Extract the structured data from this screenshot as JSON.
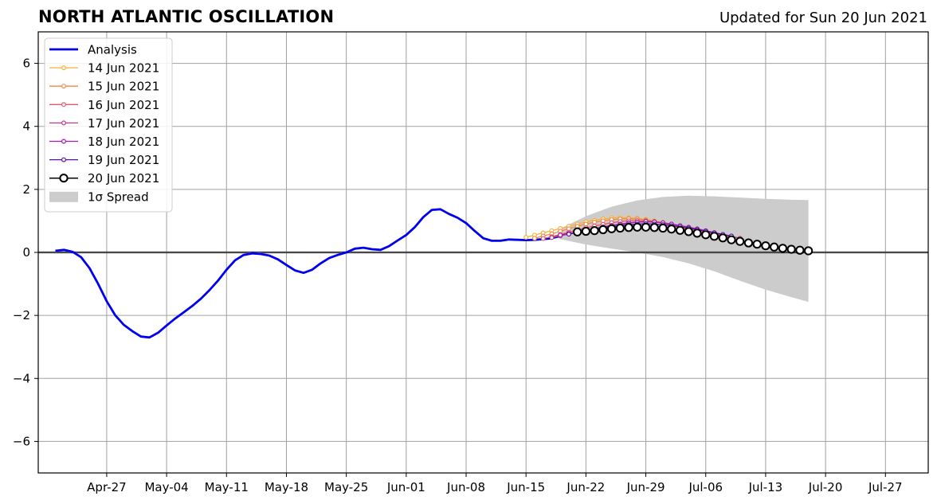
{
  "chart_data": {
    "type": "line",
    "title": "NORTH ATLANTIC OSCILLATION",
    "subtitle": "Updated for Sun 20 Jun 2021",
    "xlabel": "",
    "ylabel": "",
    "x_range": [
      "2021-04-19",
      "2021-08-01"
    ],
    "ylim": [
      -7,
      7
    ],
    "y_ticks": [
      -6,
      -4,
      -2,
      0,
      2,
      4,
      6
    ],
    "y_tick_labels": [
      "−6",
      "−4",
      "−2",
      "0",
      "2",
      "4",
      "6"
    ],
    "x_ticks": [
      "2021-04-27",
      "2021-05-04",
      "2021-05-11",
      "2021-05-18",
      "2021-05-25",
      "2021-06-01",
      "2021-06-08",
      "2021-06-15",
      "2021-06-22",
      "2021-06-29",
      "2021-07-06",
      "2021-07-13",
      "2021-07-20",
      "2021-07-27"
    ],
    "x_tick_labels": [
      "Apr-27",
      "May-04",
      "May-11",
      "May-18",
      "May-25",
      "Jun-01",
      "Jun-08",
      "Jun-15",
      "Jun-22",
      "Jun-29",
      "Jul-06",
      "Jul-13",
      "Jul-20",
      "Jul-27"
    ],
    "grid": true,
    "legend_position": "top-left",
    "series": [
      {
        "name": "Analysis",
        "color": "#0000ee",
        "style": "line",
        "x": [
          "2021-04-21",
          "2021-04-22",
          "2021-04-23",
          "2021-04-24",
          "2021-04-25",
          "2021-04-26",
          "2021-04-27",
          "2021-04-28",
          "2021-04-29",
          "2021-04-30",
          "2021-05-01",
          "2021-05-02",
          "2021-05-03",
          "2021-05-04",
          "2021-05-05",
          "2021-05-06",
          "2021-05-07",
          "2021-05-08",
          "2021-05-09",
          "2021-05-10",
          "2021-05-11",
          "2021-05-12",
          "2021-05-13",
          "2021-05-14",
          "2021-05-15",
          "2021-05-16",
          "2021-05-17",
          "2021-05-18",
          "2021-05-19",
          "2021-05-20",
          "2021-05-21",
          "2021-05-22",
          "2021-05-23",
          "2021-05-24",
          "2021-05-25",
          "2021-05-26",
          "2021-05-27",
          "2021-05-28",
          "2021-05-29",
          "2021-05-30",
          "2021-05-31",
          "2021-06-01",
          "2021-06-02",
          "2021-06-03",
          "2021-06-04",
          "2021-06-05",
          "2021-06-06",
          "2021-06-07",
          "2021-06-08",
          "2021-06-09",
          "2021-06-10",
          "2021-06-11",
          "2021-06-12",
          "2021-06-13",
          "2021-06-14",
          "2021-06-15",
          "2021-06-16",
          "2021-06-17",
          "2021-06-18",
          "2021-06-19"
        ],
        "y": [
          0.05,
          0.08,
          0.02,
          -0.15,
          -0.5,
          -1.0,
          -1.55,
          -2.0,
          -2.3,
          -2.5,
          -2.67,
          -2.7,
          -2.55,
          -2.32,
          -2.1,
          -1.9,
          -1.7,
          -1.47,
          -1.2,
          -0.9,
          -0.55,
          -0.25,
          -0.08,
          -0.03,
          -0.05,
          -0.1,
          -0.22,
          -0.4,
          -0.57,
          -0.65,
          -0.55,
          -0.35,
          -0.18,
          -0.08,
          0.0,
          0.12,
          0.15,
          0.1,
          0.08,
          0.2,
          0.38,
          0.55,
          0.8,
          1.12,
          1.35,
          1.37,
          1.22,
          1.1,
          0.93,
          0.68,
          0.45,
          0.37,
          0.37,
          0.41,
          0.4,
          0.39,
          0.4,
          0.42,
          0.45,
          0.52
        ]
      },
      {
        "name": "14 Jun 2021",
        "color": "#f8b138",
        "style": "line-dots",
        "x": [
          "2021-06-15",
          "2021-06-16",
          "2021-06-17",
          "2021-06-18",
          "2021-06-19",
          "2021-06-20",
          "2021-06-21",
          "2021-06-22",
          "2021-06-23",
          "2021-06-24",
          "2021-06-25",
          "2021-06-26",
          "2021-06-27",
          "2021-06-28",
          "2021-06-29",
          "2021-06-30",
          "2021-07-01",
          "2021-07-02",
          "2021-07-03",
          "2021-07-04",
          "2021-07-05",
          "2021-07-06",
          "2021-07-07",
          "2021-07-08",
          "2021-07-09",
          "2021-07-10",
          "2021-07-11",
          "2021-07-12"
        ],
        "y": [
          0.48,
          0.55,
          0.62,
          0.69,
          0.76,
          0.83,
          0.9,
          0.97,
          1.02,
          1.06,
          1.09,
          1.1,
          1.1,
          1.08,
          1.05,
          1.0,
          0.95,
          0.88,
          0.8,
          0.72,
          0.65,
          0.57,
          0.5,
          0.44,
          0.38,
          0.33,
          0.29,
          0.26
        ]
      },
      {
        "name": "15 Jun 2021",
        "color": "#ef8a47",
        "style": "line-dots",
        "x": [
          "2021-06-16",
          "2021-06-17",
          "2021-06-18",
          "2021-06-19",
          "2021-06-20",
          "2021-06-21",
          "2021-06-22",
          "2021-06-23",
          "2021-06-24",
          "2021-06-25",
          "2021-06-26",
          "2021-06-27",
          "2021-06-28",
          "2021-06-29",
          "2021-06-30",
          "2021-07-01",
          "2021-07-02",
          "2021-07-03",
          "2021-07-04",
          "2021-07-05",
          "2021-07-06",
          "2021-07-07",
          "2021-07-08"
        ],
        "y": [
          0.45,
          0.52,
          0.59,
          0.67,
          0.75,
          0.83,
          0.9,
          0.96,
          1.0,
          1.04,
          1.06,
          1.07,
          1.06,
          1.03,
          0.99,
          0.93,
          0.86,
          0.79,
          0.72,
          0.65,
          0.58,
          0.52,
          0.46
        ]
      },
      {
        "name": "16 Jun 2021",
        "color": "#e25a6e",
        "style": "line-dots",
        "x": [
          "2021-06-17",
          "2021-06-18",
          "2021-06-19",
          "2021-06-20",
          "2021-06-21",
          "2021-06-22",
          "2021-06-23",
          "2021-06-24",
          "2021-06-25",
          "2021-06-26",
          "2021-06-27",
          "2021-06-28",
          "2021-06-29",
          "2021-06-30",
          "2021-07-01",
          "2021-07-02",
          "2021-07-03",
          "2021-07-04",
          "2021-07-05",
          "2021-07-06",
          "2021-07-07",
          "2021-07-08",
          "2021-07-09"
        ],
        "y": [
          0.44,
          0.5,
          0.57,
          0.64,
          0.71,
          0.78,
          0.84,
          0.89,
          0.94,
          0.98,
          1.0,
          1.01,
          1.0,
          0.97,
          0.93,
          0.88,
          0.82,
          0.76,
          0.7,
          0.64,
          0.58,
          0.52,
          0.47
        ]
      },
      {
        "name": "17 Jun 2021",
        "color": "#c23b88",
        "style": "line-dots",
        "x": [
          "2021-06-18",
          "2021-06-19",
          "2021-06-20",
          "2021-06-21",
          "2021-06-22",
          "2021-06-23",
          "2021-06-24",
          "2021-06-25",
          "2021-06-26",
          "2021-06-27",
          "2021-06-28",
          "2021-06-29",
          "2021-06-30",
          "2021-07-01",
          "2021-07-02",
          "2021-07-03",
          "2021-07-04",
          "2021-07-05",
          "2021-07-06",
          "2021-07-07",
          "2021-07-08",
          "2021-07-09",
          "2021-07-10"
        ],
        "y": [
          0.47,
          0.52,
          0.58,
          0.64,
          0.7,
          0.76,
          0.81,
          0.86,
          0.9,
          0.94,
          0.96,
          0.97,
          0.96,
          0.94,
          0.9,
          0.85,
          0.8,
          0.74,
          0.68,
          0.62,
          0.56,
          0.5,
          0.45
        ]
      },
      {
        "name": "18 Jun 2021",
        "color": "#9b1fae",
        "style": "line-dots",
        "x": [
          "2021-06-19",
          "2021-06-20",
          "2021-06-21",
          "2021-06-22",
          "2021-06-23",
          "2021-06-24",
          "2021-06-25",
          "2021-06-26",
          "2021-06-27",
          "2021-06-28",
          "2021-06-29",
          "2021-06-30",
          "2021-07-01",
          "2021-07-02",
          "2021-07-03",
          "2021-07-04",
          "2021-07-05",
          "2021-07-06",
          "2021-07-07",
          "2021-07-08"
        ],
        "y": [
          0.55,
          0.6,
          0.65,
          0.7,
          0.75,
          0.8,
          0.85,
          0.89,
          0.93,
          0.96,
          0.98,
          0.97,
          0.94,
          0.9,
          0.85,
          0.8,
          0.75,
          0.69,
          0.63,
          0.57
        ]
      },
      {
        "name": "19 Jun 2021",
        "color": "#5d0fa0",
        "style": "line-dots",
        "x": [
          "2021-06-20",
          "2021-06-21",
          "2021-06-22",
          "2021-06-23",
          "2021-06-24",
          "2021-06-25",
          "2021-06-26",
          "2021-06-27",
          "2021-06-28",
          "2021-06-29",
          "2021-06-30",
          "2021-07-01",
          "2021-07-02",
          "2021-07-03",
          "2021-07-04",
          "2021-07-05",
          "2021-07-06",
          "2021-07-07",
          "2021-07-08",
          "2021-07-09"
        ],
        "y": [
          0.58,
          0.63,
          0.68,
          0.73,
          0.77,
          0.81,
          0.85,
          0.88,
          0.9,
          0.91,
          0.9,
          0.88,
          0.85,
          0.81,
          0.77,
          0.72,
          0.67,
          0.62,
          0.57,
          0.52
        ]
      },
      {
        "name": "20 Jun 2021",
        "color": "#000000",
        "style": "line-open-circles",
        "x": [
          "2021-06-21",
          "2021-06-22",
          "2021-06-23",
          "2021-06-24",
          "2021-06-25",
          "2021-06-26",
          "2021-06-27",
          "2021-06-28",
          "2021-06-29",
          "2021-06-30",
          "2021-07-01",
          "2021-07-02",
          "2021-07-03",
          "2021-07-04",
          "2021-07-05",
          "2021-07-06",
          "2021-07-07",
          "2021-07-08",
          "2021-07-09",
          "2021-07-10",
          "2021-07-11",
          "2021-07-12",
          "2021-07-13",
          "2021-07-14",
          "2021-07-15",
          "2021-07-16",
          "2021-07-17",
          "2021-07-18"
        ],
        "y": [
          0.65,
          0.67,
          0.69,
          0.72,
          0.75,
          0.77,
          0.79,
          0.8,
          0.8,
          0.79,
          0.77,
          0.74,
          0.7,
          0.66,
          0.61,
          0.56,
          0.51,
          0.46,
          0.4,
          0.35,
          0.3,
          0.26,
          0.21,
          0.17,
          0.13,
          0.1,
          0.07,
          0.05
        ]
      }
    ],
    "spread": {
      "name": "1σ Spread",
      "color": "#cccccc",
      "x": [
        "2021-06-19",
        "2021-06-22",
        "2021-06-25",
        "2021-06-28",
        "2021-07-01",
        "2021-07-04",
        "2021-07-07",
        "2021-07-10",
        "2021-07-13",
        "2021-07-16",
        "2021-07-18"
      ],
      "upper": [
        0.75,
        1.15,
        1.45,
        1.65,
        1.76,
        1.8,
        1.78,
        1.74,
        1.7,
        1.67,
        1.66
      ],
      "lower": [
        0.42,
        0.25,
        0.12,
        0.0,
        -0.15,
        -0.35,
        -0.6,
        -0.9,
        -1.18,
        -1.42,
        -1.57
      ]
    }
  }
}
